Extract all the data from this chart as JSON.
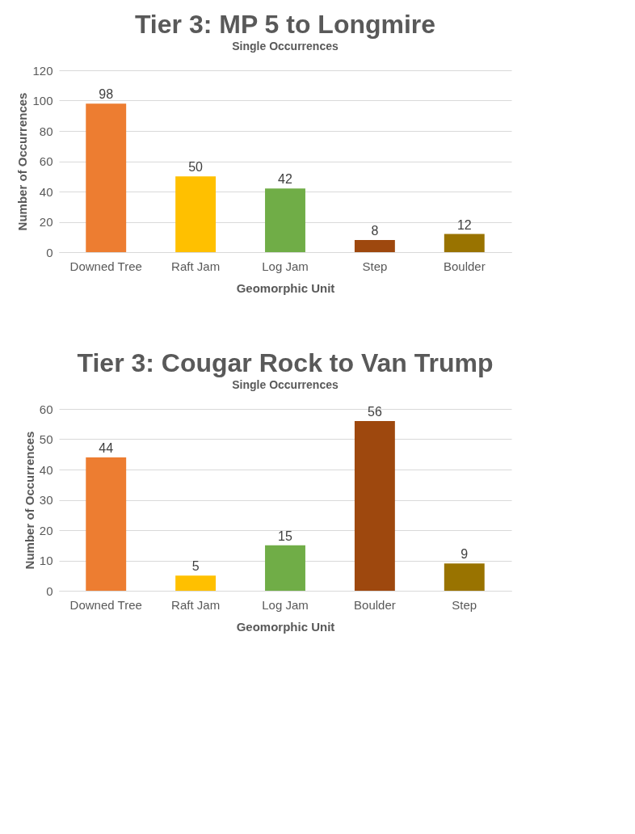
{
  "chart_data": [
    {
      "type": "bar",
      "title": "Tier 3: MP 5 to Longmire",
      "subtitle": "Single Occurrences",
      "xlabel": "Geomorphic Unit",
      "ylabel": "Number of Occurrences",
      "categories": [
        "Downed Tree",
        "Raft Jam",
        "Log Jam",
        "Step",
        "Boulder"
      ],
      "values": [
        98,
        50,
        42,
        8,
        12
      ],
      "colors": [
        "#ed7d31",
        "#ffc000",
        "#70ad47",
        "#9e480e",
        "#997300"
      ],
      "ylim": [
        0,
        120
      ],
      "yticks": [
        0,
        20,
        40,
        60,
        80,
        100,
        120
      ],
      "grid": "y",
      "data_labels": true
    },
    {
      "type": "bar",
      "title": "Tier 3: Cougar Rock to Van Trump",
      "subtitle": "Single Occurrences",
      "xlabel": "Geomorphic Unit",
      "ylabel": "Number of Occurrences",
      "categories": [
        "Downed Tree",
        "Raft Jam",
        "Log Jam",
        "Boulder",
        "Step"
      ],
      "values": [
        44,
        5,
        15,
        56,
        9
      ],
      "colors": [
        "#ed7d31",
        "#ffc000",
        "#70ad47",
        "#9e480e",
        "#997300"
      ],
      "ylim": [
        0,
        60
      ],
      "yticks": [
        0,
        10,
        20,
        30,
        40,
        50,
        60
      ],
      "grid": "y",
      "data_labels": true
    }
  ]
}
